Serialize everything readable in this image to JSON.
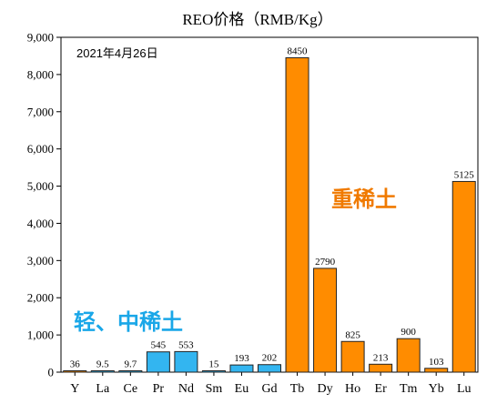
{
  "chart_data": {
    "type": "bar",
    "title": "REO价格（RMB/Kg）",
    "date_text": "2021年4月26日",
    "categories": [
      "Y",
      "La",
      "Ce",
      "Pr",
      "Nd",
      "Sm",
      "Eu",
      "Gd",
      "Tb",
      "Dy",
      "Ho",
      "Er",
      "Tm",
      "Yb",
      "Lu"
    ],
    "values": [
      36,
      9.5,
      9.7,
      545,
      553,
      15,
      193,
      202,
      8450,
      2790,
      825,
      213,
      900,
      103,
      5125
    ],
    "value_labels": [
      "36",
      "9.5",
      "9.7",
      "545",
      "553",
      "15",
      "193",
      "202",
      "8450",
      "2790",
      "825",
      "213",
      "900",
      "103",
      "5125"
    ],
    "groups": [
      "heavy",
      "light",
      "light",
      "light",
      "light",
      "light",
      "light",
      "light",
      "heavy",
      "heavy",
      "heavy",
      "heavy",
      "heavy",
      "heavy",
      "heavy"
    ],
    "ylim": [
      0,
      9000
    ],
    "yticks": [
      0,
      1000,
      2000,
      3000,
      4000,
      5000,
      6000,
      7000,
      8000,
      9000
    ],
    "ytick_labels": [
      "0",
      "1,000",
      "2,000",
      "3,000",
      "4,000",
      "5,000",
      "6,000",
      "7,000",
      "8,000",
      "9,000"
    ],
    "xlabel": "",
    "ylabel": "",
    "annotations": {
      "light_group": "轻、中稀土",
      "heavy_group": "重稀土"
    },
    "colors": {
      "light": "#33b5f0",
      "heavy": "#ff8c00",
      "light_text": "#1aa7e8",
      "heavy_text": "#f07a00"
    }
  }
}
